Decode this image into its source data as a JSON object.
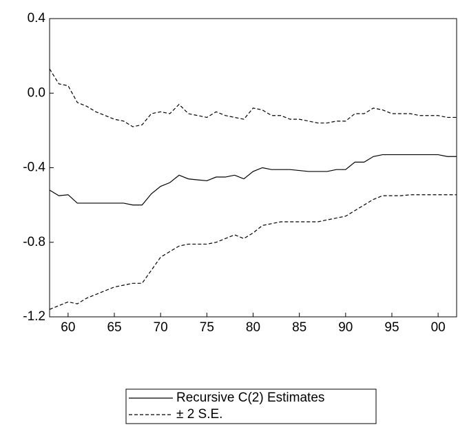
{
  "chart_data": {
    "type": "line",
    "x": [
      1958,
      1959,
      1960,
      1961,
      1962,
      1963,
      1964,
      1965,
      1966,
      1967,
      1968,
      1969,
      1970,
      1971,
      1972,
      1973,
      1974,
      1975,
      1976,
      1977,
      1978,
      1979,
      1980,
      1981,
      1982,
      1983,
      1984,
      1985,
      1986,
      1987,
      1988,
      1989,
      1990,
      1991,
      1992,
      1993,
      1994,
      1995,
      1996,
      1997,
      1998,
      1999,
      2000,
      2001,
      2002
    ],
    "series": [
      {
        "name": "Recursive C(2) Estimates",
        "color": "#000000",
        "dash": false,
        "values": [
          -0.52,
          -0.55,
          -0.545,
          -0.59,
          -0.59,
          -0.59,
          -0.59,
          -0.59,
          -0.59,
          -0.6,
          -0.6,
          -0.54,
          -0.5,
          -0.48,
          -0.44,
          -0.46,
          -0.465,
          -0.47,
          -0.45,
          -0.45,
          -0.44,
          -0.46,
          -0.42,
          -0.4,
          -0.41,
          -0.41,
          -0.41,
          -0.415,
          -0.42,
          -0.42,
          -0.42,
          -0.41,
          -0.41,
          -0.37,
          -0.37,
          -0.34,
          -0.33,
          -0.33,
          -0.33,
          -0.33,
          -0.33,
          -0.33,
          -0.33,
          -0.34,
          -0.34
        ]
      },
      {
        "name": "± 2 S.E.",
        "color": "#000000",
        "dash": true,
        "values": [
          0.13,
          0.05,
          0.04,
          -0.05,
          -0.07,
          -0.1,
          -0.12,
          -0.14,
          -0.15,
          -0.18,
          -0.17,
          -0.11,
          -0.1,
          -0.11,
          -0.06,
          -0.11,
          -0.12,
          -0.13,
          -0.1,
          -0.12,
          -0.13,
          -0.14,
          -0.08,
          -0.09,
          -0.12,
          -0.12,
          -0.14,
          -0.14,
          -0.15,
          -0.16,
          -0.16,
          -0.15,
          -0.15,
          -0.11,
          -0.11,
          -0.08,
          -0.09,
          -0.11,
          -0.11,
          -0.11,
          -0.12,
          -0.12,
          -0.12,
          -0.13,
          -0.13
        ]
      },
      {
        "color": "#000000",
        "dash": true,
        "values": [
          -1.16,
          -1.14,
          -1.12,
          -1.13,
          -1.1,
          -1.08,
          -1.06,
          -1.04,
          -1.03,
          -1.02,
          -1.02,
          -0.95,
          -0.88,
          -0.85,
          -0.82,
          -0.81,
          -0.81,
          -0.81,
          -0.8,
          -0.78,
          -0.76,
          -0.78,
          -0.75,
          -0.71,
          -0.7,
          -0.69,
          -0.69,
          -0.69,
          -0.69,
          -0.69,
          -0.68,
          -0.67,
          -0.66,
          -0.63,
          -0.6,
          -0.57,
          -0.55,
          -0.55,
          -0.55,
          -0.545,
          -0.545,
          -0.545,
          -0.545,
          -0.545,
          -0.545
        ]
      }
    ],
    "xlim": [
      1958,
      2002
    ],
    "xticks": [
      {
        "value": 1960,
        "label": "60"
      },
      {
        "value": 1965,
        "label": "65"
      },
      {
        "value": 1970,
        "label": "70"
      },
      {
        "value": 1975,
        "label": "75"
      },
      {
        "value": 1980,
        "label": "80"
      },
      {
        "value": 1985,
        "label": "85"
      },
      {
        "value": 1990,
        "label": "90"
      },
      {
        "value": 1995,
        "label": "95"
      },
      {
        "value": 2000,
        "label": "00"
      }
    ],
    "ylim": [
      -1.2,
      0.4
    ],
    "yticks": [
      {
        "value": -1.2,
        "label": "-1.2"
      },
      {
        "value": -0.8,
        "label": "-0.8"
      },
      {
        "value": -0.4,
        "label": "-0.4"
      },
      {
        "value": 0,
        "label": "0.0"
      },
      {
        "value": 0.4,
        "label": "0.4"
      }
    ],
    "grid": false
  }
}
